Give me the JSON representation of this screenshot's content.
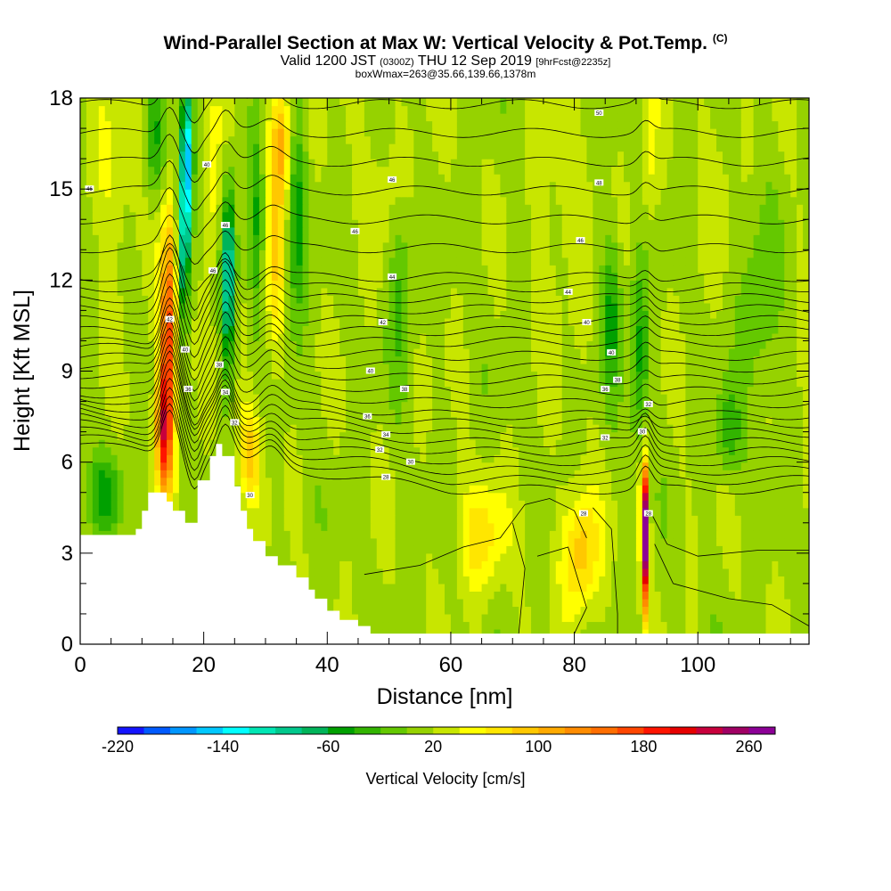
{
  "header": {
    "title_main": "Wind-Parallel Section at Max W: Vertical Velocity & Pot.Temp.",
    "title_units": "(C)",
    "valid_prefix": "Valid 1200 JST",
    "valid_utc": "(0300Z)",
    "valid_date": "THU 12 Sep 2019",
    "forecast_info": "[9hrFcst@2235z]",
    "box_info": "boxWmax=263@35.66,139.66,1378m"
  },
  "chart_data": {
    "type": "heatmap",
    "title": "Wind-Parallel Section at Max W: Vertical Velocity & Pot.Temp.",
    "xlabel": "Distance [nm]",
    "ylabel": "Height [Kft MSL]",
    "xlim": [
      0,
      118
    ],
    "ylim": [
      0,
      18
    ],
    "x_ticks": [
      "0",
      "20",
      "40",
      "60",
      "80",
      "100"
    ],
    "y_ticks": [
      "0",
      "3",
      "6",
      "9",
      "12",
      "15",
      "18"
    ],
    "colorbar": {
      "label": "Vertical Velocity [cm/s]",
      "tick_labels": [
        "-220",
        "-140",
        "-60",
        "20",
        "100",
        "180",
        "260"
      ],
      "colors": [
        "#1414ff",
        "#005aff",
        "#0096ff",
        "#00c8ff",
        "#00ffff",
        "#00e6b4",
        "#00c88c",
        "#00b45a",
        "#00a000",
        "#32b400",
        "#64c800",
        "#96d200",
        "#c8e600",
        "#ffff00",
        "#ffe600",
        "#ffc800",
        "#ffaa00",
        "#ff8c00",
        "#ff6e00",
        "#ff4600",
        "#ff1400",
        "#e60000",
        "#c8003c",
        "#a00064",
        "#8c0096"
      ]
    },
    "terrain": [
      [
        0,
        3.6
      ],
      [
        9,
        3.6
      ],
      [
        9,
        3.8
      ],
      [
        10,
        3.8
      ],
      [
        10,
        4.4
      ],
      [
        11,
        4.4
      ],
      [
        11,
        5
      ],
      [
        14,
        5
      ],
      [
        14,
        4.7
      ],
      [
        15,
        4.7
      ],
      [
        15,
        4.4
      ],
      [
        17,
        4.4
      ],
      [
        17,
        4
      ],
      [
        19,
        4
      ],
      [
        19,
        5.4
      ],
      [
        21,
        5.4
      ],
      [
        21,
        6.2
      ],
      [
        22,
        6.2
      ],
      [
        22,
        6.6
      ],
      [
        23,
        6.6
      ],
      [
        23,
        6.2
      ],
      [
        25,
        6.2
      ],
      [
        25,
        5.2
      ],
      [
        26,
        5.2
      ],
      [
        26,
        4.4
      ],
      [
        27,
        4.4
      ],
      [
        27,
        3.8
      ],
      [
        28,
        3.8
      ],
      [
        28,
        3.4
      ],
      [
        30,
        3.4
      ],
      [
        30,
        2.9
      ],
      [
        32,
        2.9
      ],
      [
        32,
        2.6
      ],
      [
        35,
        2.6
      ],
      [
        35,
        2.2
      ],
      [
        37,
        2.2
      ],
      [
        37,
        1.8
      ],
      [
        38,
        1.8
      ],
      [
        38,
        1.5
      ],
      [
        40,
        1.5
      ],
      [
        40,
        1.1
      ],
      [
        42,
        1.1
      ],
      [
        42,
        0.8
      ],
      [
        45,
        0.8
      ],
      [
        45,
        0.6
      ],
      [
        47,
        0.6
      ],
      [
        47,
        0.35
      ],
      [
        118,
        0.35
      ]
    ],
    "w_features": [
      {
        "x": 14.3,
        "y": 10,
        "value": 180,
        "wx": 1.4,
        "wy": 4.0,
        "angle": 18
      },
      {
        "x": 13.5,
        "y": 7,
        "value": 140,
        "wx": 1.2,
        "wy": 1.8,
        "angle": 0
      },
      {
        "x": 17.3,
        "y": 16,
        "value": -150,
        "wx": 1.0,
        "wy": 2.5,
        "angle": 0
      },
      {
        "x": 16.6,
        "y": 13,
        "value": -90,
        "wx": 1.1,
        "wy": 2.5,
        "angle": 10
      },
      {
        "x": 24,
        "y": 12,
        "value": -110,
        "wx": 1.1,
        "wy": 3.0,
        "angle": 10
      },
      {
        "x": 12,
        "y": 16.5,
        "value": -40,
        "wx": 1.5,
        "wy": 2.0,
        "angle": 0
      },
      {
        "x": 21.5,
        "y": 15,
        "value": 60,
        "wx": 1.4,
        "wy": 3.0,
        "angle": 0
      },
      {
        "x": 32.5,
        "y": 16.5,
        "value": 110,
        "wx": 1.8,
        "wy": 2.0,
        "angle": 0
      },
      {
        "x": 31.5,
        "y": 12,
        "value": 70,
        "wx": 1.5,
        "wy": 3.0,
        "angle": 10
      },
      {
        "x": 27.5,
        "y": 6.3,
        "value": 90,
        "wx": 1.8,
        "wy": 1.5,
        "angle": 0
      },
      {
        "x": 35,
        "y": 14,
        "value": -50,
        "wx": 1.5,
        "wy": 3.5,
        "angle": 0
      },
      {
        "x": 28.5,
        "y": 14,
        "value": -40,
        "wx": 1.2,
        "wy": 3.0,
        "angle": 0
      },
      {
        "x": 4,
        "y": 5,
        "value": -40,
        "wx": 3.0,
        "wy": 1.2,
        "angle": 0
      },
      {
        "x": 5,
        "y": 15,
        "value": 40,
        "wx": 4.0,
        "wy": 3.0,
        "angle": 0
      },
      {
        "x": 65,
        "y": 3.5,
        "value": 70,
        "wx": 4.0,
        "wy": 1.8,
        "angle": 0
      },
      {
        "x": 81,
        "y": 3,
        "value": 95,
        "wx": 3.0,
        "wy": 2.0,
        "angle": 0
      },
      {
        "x": 91.3,
        "y": 4.2,
        "value": 263,
        "wx": 0.6,
        "wy": 1.8,
        "angle": 0
      },
      {
        "x": 91.7,
        "y": 2.5,
        "value": 160,
        "wx": 0.5,
        "wy": 1.8,
        "angle": 0
      },
      {
        "x": 90.5,
        "y": 9.5,
        "value": -50,
        "wx": 1.5,
        "wy": 3.0,
        "angle": 0
      },
      {
        "x": 86,
        "y": 11,
        "value": -45,
        "wx": 1.5,
        "wy": 2.5,
        "angle": 0
      },
      {
        "x": 92,
        "y": 16,
        "value": 45,
        "wx": 1.5,
        "wy": 3.0,
        "angle": 0
      },
      {
        "x": 105,
        "y": 7,
        "value": -40,
        "wx": 2.0,
        "wy": 1.5,
        "angle": 0
      },
      {
        "x": 78,
        "y": 14,
        "value": 35,
        "wx": 4.0,
        "wy": 4.0,
        "angle": 0
      },
      {
        "x": 50,
        "y": 15,
        "value": 30,
        "wx": 5.0,
        "wy": 3.0,
        "angle": 0
      },
      {
        "x": 103,
        "y": 16,
        "value": 30,
        "wx": 3.0,
        "wy": 3.0,
        "angle": 0
      },
      {
        "x": 52,
        "y": 12,
        "value": -30,
        "wx": 2.0,
        "wy": 3.0,
        "angle": 0
      },
      {
        "x": 110,
        "y": 11,
        "value": -20,
        "wx": 3.0,
        "wy": 3.0,
        "angle": 0
      }
    ],
    "contour_labels": [
      {
        "x": 1.5,
        "y": 15.0,
        "text": "46"
      },
      {
        "x": 20.5,
        "y": 15.8,
        "text": "40"
      },
      {
        "x": 50.5,
        "y": 15.3,
        "text": "46"
      },
      {
        "x": 84,
        "y": 17.5,
        "text": "50"
      },
      {
        "x": 84,
        "y": 15.2,
        "text": "48"
      },
      {
        "x": 23.5,
        "y": 13.8,
        "text": "46"
      },
      {
        "x": 44.5,
        "y": 13.6,
        "text": "46"
      },
      {
        "x": 81,
        "y": 13.3,
        "text": "46"
      },
      {
        "x": 21.5,
        "y": 12.3,
        "text": "46"
      },
      {
        "x": 50.5,
        "y": 12.1,
        "text": "44"
      },
      {
        "x": 79,
        "y": 11.6,
        "text": "44"
      },
      {
        "x": 14.5,
        "y": 10.7,
        "text": "42"
      },
      {
        "x": 49,
        "y": 10.6,
        "text": "42"
      },
      {
        "x": 82,
        "y": 10.6,
        "text": "40"
      },
      {
        "x": 17,
        "y": 9.7,
        "text": "40"
      },
      {
        "x": 22.5,
        "y": 9.2,
        "text": "38"
      },
      {
        "x": 47,
        "y": 9.0,
        "text": "40"
      },
      {
        "x": 86,
        "y": 9.6,
        "text": "40"
      },
      {
        "x": 87,
        "y": 8.7,
        "text": "38"
      },
      {
        "x": 17.5,
        "y": 8.4,
        "text": "36"
      },
      {
        "x": 23.5,
        "y": 8.3,
        "text": "34"
      },
      {
        "x": 52.5,
        "y": 8.4,
        "text": "38"
      },
      {
        "x": 85,
        "y": 8.4,
        "text": "36"
      },
      {
        "x": 92,
        "y": 7.9,
        "text": "32"
      },
      {
        "x": 25,
        "y": 7.3,
        "text": "32"
      },
      {
        "x": 46.5,
        "y": 7.5,
        "text": "36"
      },
      {
        "x": 49.5,
        "y": 6.9,
        "text": "34"
      },
      {
        "x": 85,
        "y": 6.8,
        "text": "32"
      },
      {
        "x": 91,
        "y": 7.0,
        "text": "30"
      },
      {
        "x": 48.5,
        "y": 6.4,
        "text": "32"
      },
      {
        "x": 53.5,
        "y": 6.0,
        "text": "30"
      },
      {
        "x": 49.5,
        "y": 5.5,
        "text": "28"
      },
      {
        "x": 27.5,
        "y": 4.9,
        "text": "30"
      },
      {
        "x": 81.5,
        "y": 4.3,
        "text": "28"
      },
      {
        "x": 92,
        "y": 4.3,
        "text": "28"
      }
    ]
  }
}
